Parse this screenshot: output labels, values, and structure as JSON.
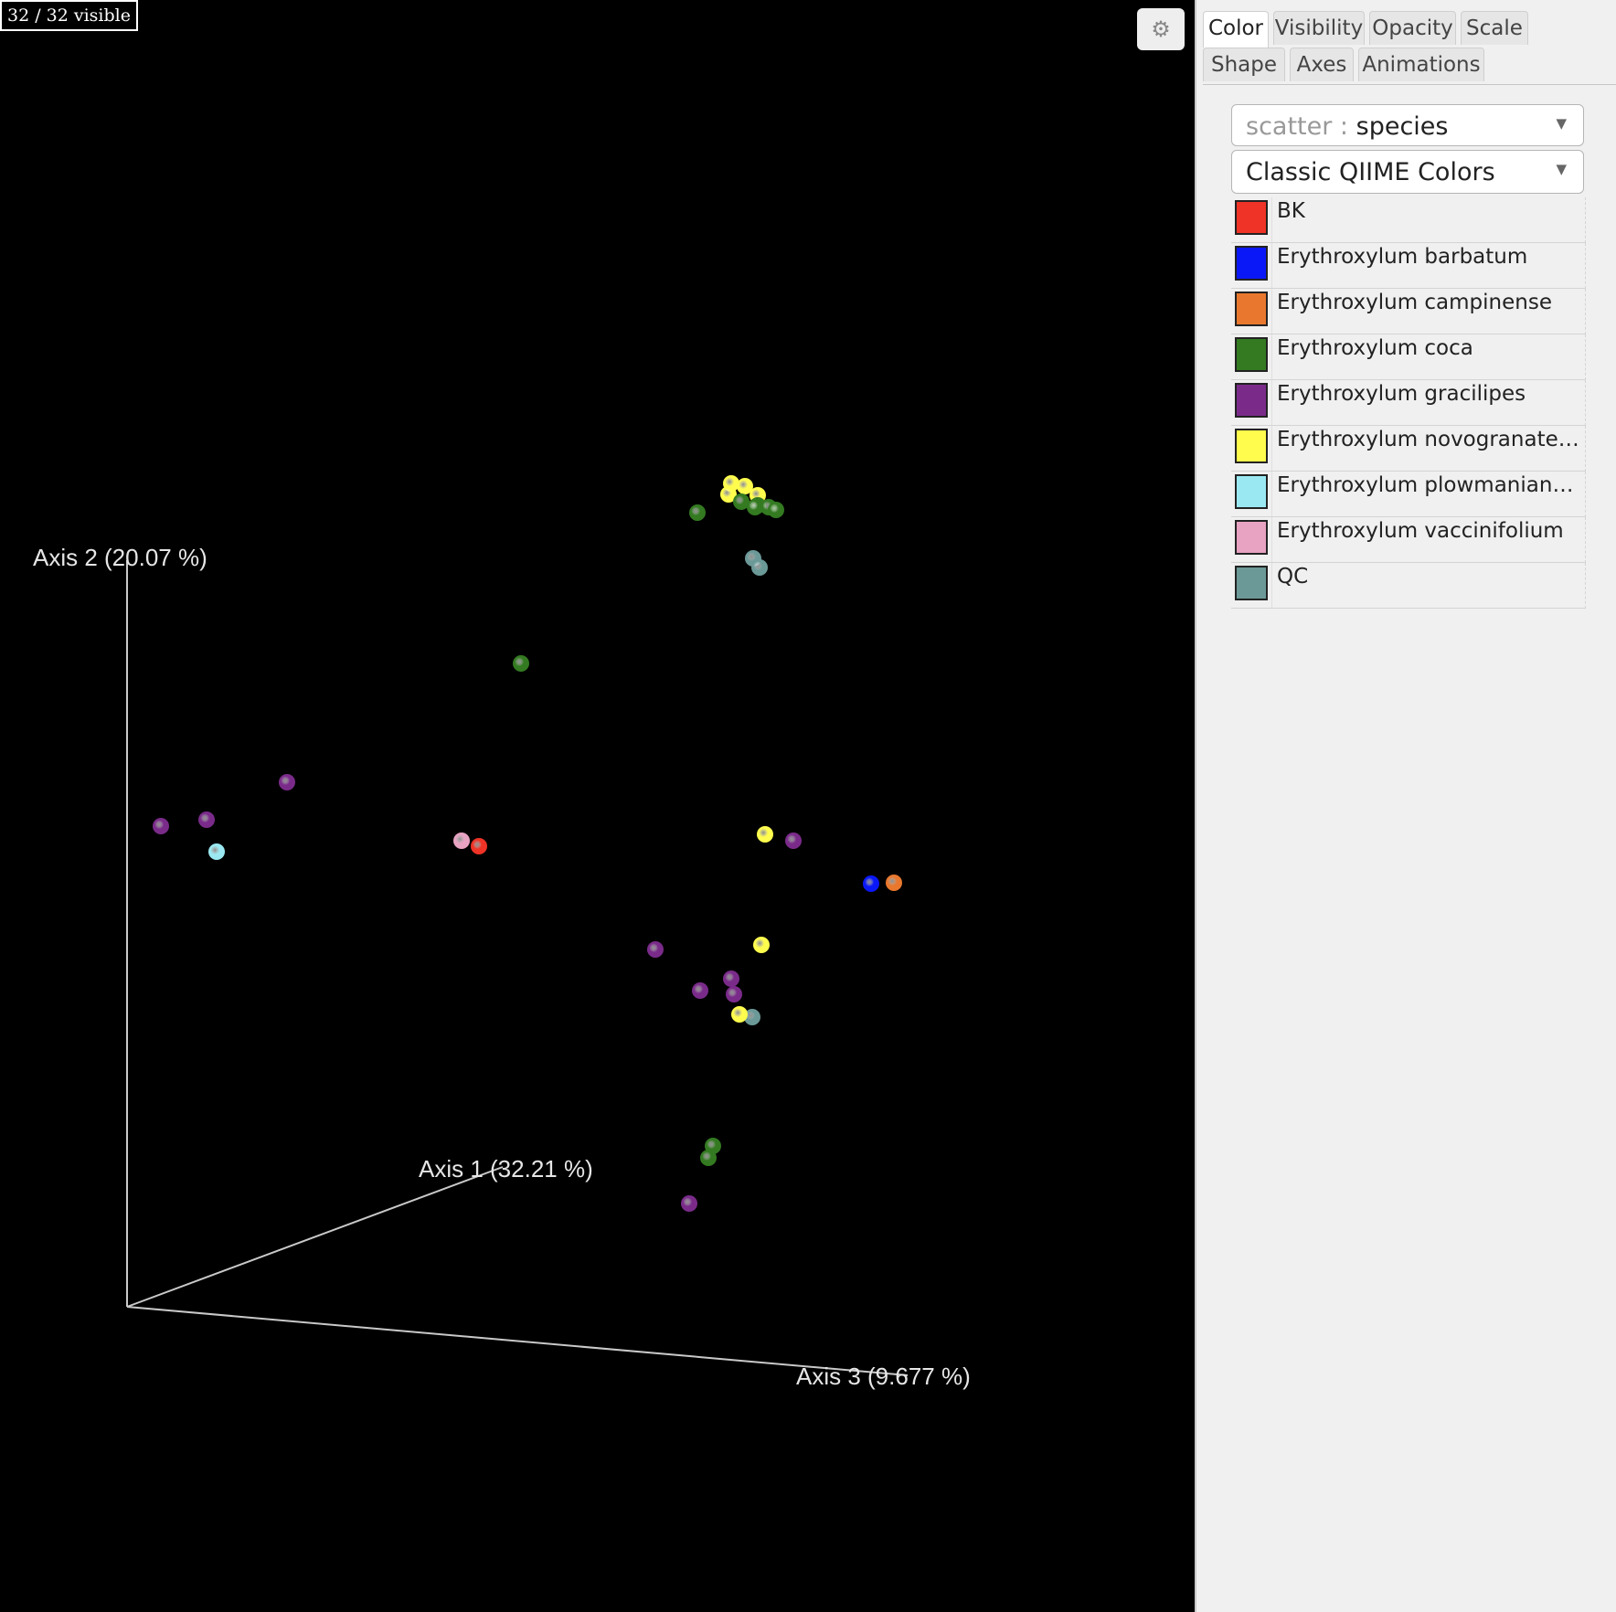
{
  "viewer": {
    "visible_count": "32 / 32 visible",
    "settings_icon": "gear-icon",
    "axes": [
      {
        "label": "Axis 1 (32.21 %)"
      },
      {
        "label": "Axis 2 (20.07 %)"
      },
      {
        "label": "Axis 3 (9.677 %)"
      }
    ]
  },
  "tabs": [
    {
      "label": "Color",
      "active": true
    },
    {
      "label": "Visibility",
      "active": false
    },
    {
      "label": "Opacity",
      "active": false
    },
    {
      "label": "Scale",
      "active": false
    },
    {
      "label": "Shape",
      "active": false
    },
    {
      "label": "Axes",
      "active": false
    },
    {
      "label": "Animations",
      "active": false
    }
  ],
  "color_panel": {
    "category_select": {
      "prefix": "scatter :",
      "value": "species"
    },
    "colormap_select": {
      "value": "Classic QIIME Colors"
    },
    "legend": [
      {
        "label": "BK",
        "color": "#ef3326"
      },
      {
        "label": "Erythroxylum barbatum",
        "color": "#0a18f7"
      },
      {
        "label": "Erythroxylum campinense",
        "color": "#e9782e"
      },
      {
        "label": "Erythroxylum coca",
        "color": "#337a21"
      },
      {
        "label": "Erythroxylum gracilipes",
        "color": "#7a2b8a"
      },
      {
        "label": "Erythroxylum novogranaten...",
        "color": "#fffc4d"
      },
      {
        "label": "Erythroxylum plowmanianum",
        "color": "#9ae9f2"
      },
      {
        "label": "Erythroxylum vaccinifolium",
        "color": "#e8a2c2"
      },
      {
        "label": "QC",
        "color": "#6b9998"
      }
    ]
  }
}
